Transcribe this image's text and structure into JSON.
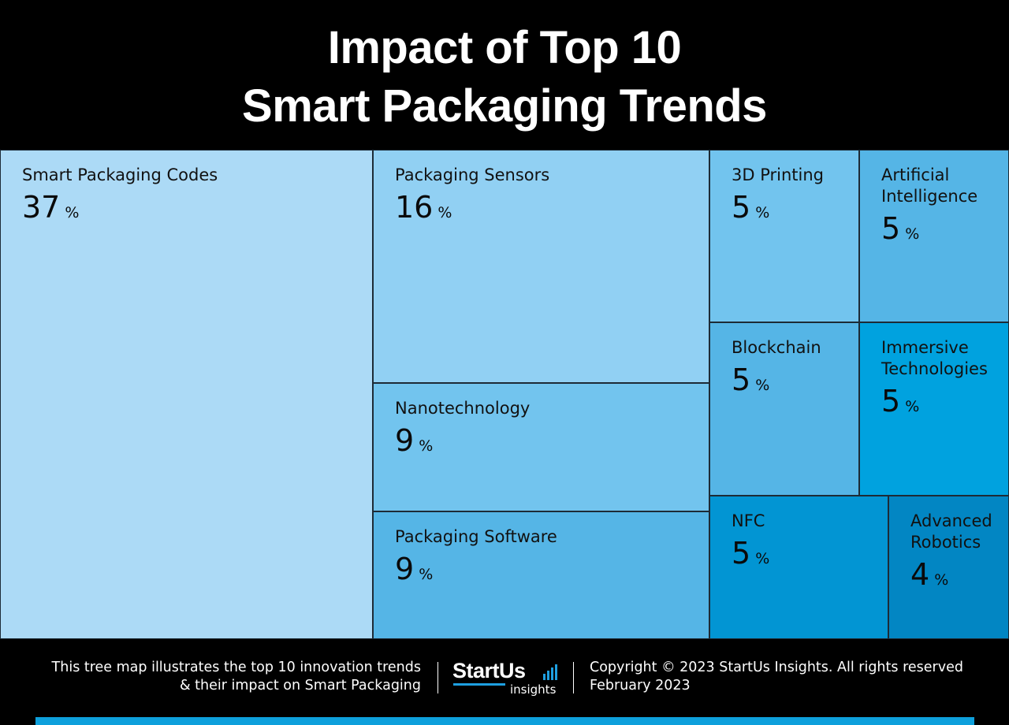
{
  "title": {
    "line1": "Impact of Top 10",
    "line2": "Smart Packaging Trends"
  },
  "chart_data": {
    "type": "treemap",
    "unit": "%",
    "items": [
      {
        "label": "Smart Packaging Codes",
        "value": 37,
        "color": "#acdaf6"
      },
      {
        "label": "Packaging Sensors",
        "value": 16,
        "color": "#91d0f3"
      },
      {
        "label": "Nanotechnology",
        "value": 9,
        "color": "#72c4ee"
      },
      {
        "label": "Packaging Software",
        "value": 9,
        "color": "#55b5e6"
      },
      {
        "label": "3D Printing",
        "value": 5,
        "color": "#72c4ee"
      },
      {
        "label": "Artificial Intelligence",
        "value": 5,
        "color": "#55b5e6"
      },
      {
        "label": "Blockchain",
        "value": 5,
        "color": "#55b5e6"
      },
      {
        "label": "Immersive Technologies",
        "value": 5,
        "color": "#00a2df"
      },
      {
        "label": "NFC",
        "value": 5,
        "color": "#0295d3"
      },
      {
        "label": "Advanced Robotics",
        "value": 4,
        "color": "#0286c3"
      }
    ]
  },
  "footer": {
    "description_line1": "This tree map illustrates the top 10 innovation trends",
    "description_line2": "& their impact on Smart Packaging",
    "logo_word": "StartUs",
    "logo_sub": "insights",
    "copyright": "Copyright © 2023 StartUs Insights. All rights reserved",
    "date": "February 2023"
  },
  "colors": {
    "background": "#000000",
    "accent": "#0ea0dc"
  }
}
